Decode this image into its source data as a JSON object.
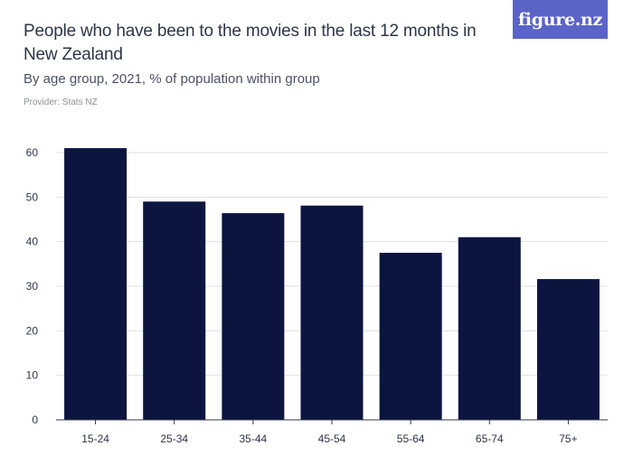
{
  "header": {
    "title": "People who have been to the movies in the last 12 months in New Zealand",
    "subtitle": "By age group, 2021, % of population within group",
    "provider": "Provider: Stats NZ"
  },
  "logo": {
    "text": "figure.nz"
  },
  "colors": {
    "bar": "#0b1540",
    "grid": "#dfe1e6",
    "axis": "#2d3648",
    "logo_bg": "#5a64c7"
  },
  "chart_data": {
    "type": "bar",
    "categories": [
      "15-24",
      "25-34",
      "35-44",
      "45-54",
      "55-64",
      "65-74",
      "75+"
    ],
    "values": [
      61,
      49,
      46.4,
      48.1,
      37.5,
      41,
      31.6
    ],
    "yticks": [
      0,
      10,
      20,
      30,
      40,
      50,
      60
    ],
    "ylim": [
      0,
      67
    ],
    "grid": true,
    "legend": "none"
  }
}
